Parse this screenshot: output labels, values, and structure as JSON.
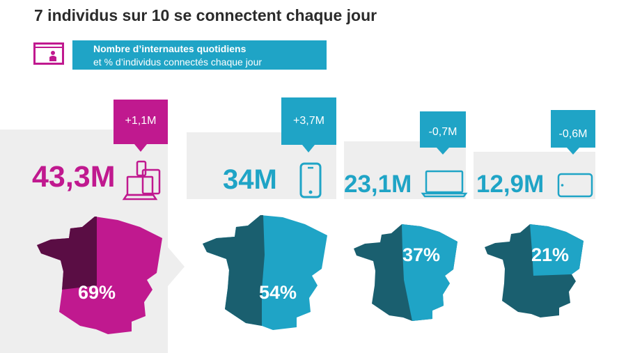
{
  "title": "7 individus sur 10 se connectent chaque jour",
  "legend": {
    "line1": "Nombre d’internautes quotidiens",
    "line2": "et % d’individus connectés chaque jour",
    "icon": "computer-user-icon"
  },
  "colors": {
    "magenta": "#c0198f",
    "magenta_dark": "#5a0d44",
    "cyan": "#1fa4c6",
    "teal_dark": "#1a5f6f",
    "panel": "#eeeeee"
  },
  "chart_data": {
    "type": "table",
    "title": "7 individus sur 10 se connectent chaque jour",
    "rows": [
      {
        "device": "total",
        "icon": "multi-device-icon",
        "count": "43,3M",
        "change": "+1,1M",
        "percent_label": "69%",
        "percent": 69
      },
      {
        "device": "smartphone",
        "icon": "smartphone-icon",
        "count": "34M",
        "change": "+3,7M",
        "percent_label": "54%",
        "percent": 54
      },
      {
        "device": "laptop",
        "icon": "laptop-icon",
        "count": "23,1M",
        "change": "-0,7M",
        "percent_label": "37%",
        "percent": 37
      },
      {
        "device": "tablet",
        "icon": "tablet-icon",
        "count": "12,9M",
        "change": "-0,6M",
        "percent_label": "21%",
        "percent": 21
      }
    ]
  }
}
